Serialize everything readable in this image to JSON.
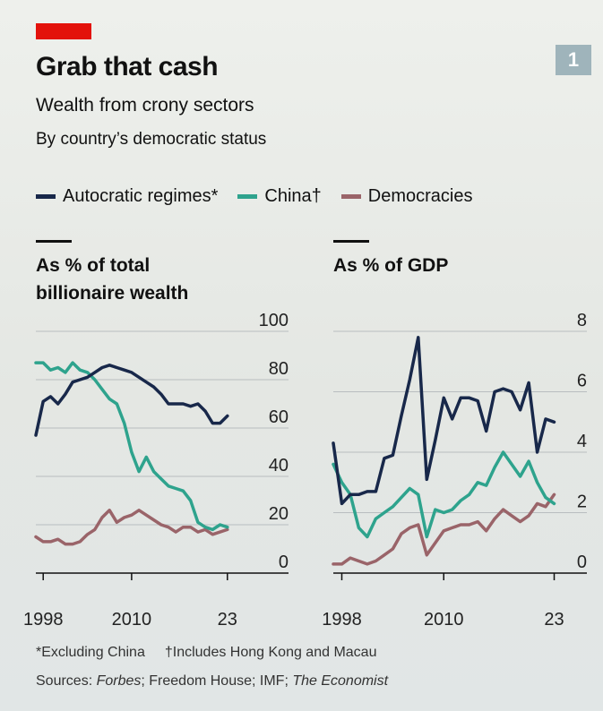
{
  "header": {
    "badge_number": "1",
    "title": "Grab that cash",
    "subtitle": "Wealth from crony sectors",
    "subtitle2": "By country’s democratic status"
  },
  "legend": [
    {
      "label": "Autocratic regimes*",
      "color": "#18284a"
    },
    {
      "label": "China†",
      "color": "#2ea38d"
    },
    {
      "label": "Democracies",
      "color": "#9a6469"
    }
  ],
  "colors": {
    "accent_red": "#e3120b",
    "autocratic": "#18284a",
    "china": "#2ea38d",
    "democracies": "#9a6469"
  },
  "chart_data": [
    {
      "type": "line",
      "title": "As % of total billionaire wealth",
      "x_ticks": [
        "1998",
        "2010",
        "23"
      ],
      "y_ticks": [
        "100",
        "80",
        "60",
        "40",
        "20",
        "0"
      ],
      "ylim": [
        0,
        100
      ],
      "xlim": [
        1997,
        2024
      ],
      "grid": true,
      "series": [
        {
          "name": "Autocratic regimes*",
          "x": [
            1997,
            1998,
            1999,
            2000,
            2001,
            2002,
            2003,
            2004,
            2005,
            2006,
            2007,
            2008,
            2009,
            2010,
            2011,
            2012,
            2013,
            2014,
            2015,
            2016,
            2017,
            2018,
            2019,
            2020,
            2021,
            2022,
            2023
          ],
          "values": [
            57,
            71,
            73,
            70,
            74,
            79,
            80,
            81,
            83,
            85,
            86,
            85,
            84,
            83,
            81,
            79,
            77,
            74,
            70,
            70,
            70,
            69,
            70,
            67,
            62,
            62,
            65
          ]
        },
        {
          "name": "China†",
          "x": [
            1997,
            1998,
            1999,
            2000,
            2001,
            2002,
            2003,
            2004,
            2005,
            2006,
            2007,
            2008,
            2009,
            2010,
            2011,
            2012,
            2013,
            2014,
            2015,
            2016,
            2017,
            2018,
            2019,
            2020,
            2021,
            2022,
            2023
          ],
          "values": [
            87,
            87,
            84,
            85,
            83,
            87,
            84,
            83,
            80,
            76,
            72,
            70,
            62,
            50,
            42,
            48,
            42,
            39,
            36,
            35,
            34,
            30,
            21,
            19,
            18,
            20,
            19
          ]
        },
        {
          "name": "Democracies",
          "x": [
            1997,
            1998,
            1999,
            2000,
            2001,
            2002,
            2003,
            2004,
            2005,
            2006,
            2007,
            2008,
            2009,
            2010,
            2011,
            2012,
            2013,
            2014,
            2015,
            2016,
            2017,
            2018,
            2019,
            2020,
            2021,
            2022,
            2023
          ],
          "values": [
            15,
            13,
            13,
            14,
            12,
            12,
            13,
            16,
            18,
            23,
            26,
            21,
            23,
            24,
            26,
            24,
            22,
            20,
            19,
            17,
            19,
            19,
            17,
            18,
            16,
            17,
            18
          ]
        }
      ]
    },
    {
      "type": "line",
      "title": "As % of GDP",
      "x_ticks": [
        "1998",
        "2010",
        "23"
      ],
      "y_ticks": [
        "8",
        "6",
        "4",
        "2",
        "0"
      ],
      "ylim": [
        0,
        8
      ],
      "xlim": [
        1997,
        2024
      ],
      "grid": true,
      "series": [
        {
          "name": "Autocratic regimes*",
          "x": [
            1997,
            1998,
            1999,
            2000,
            2001,
            2002,
            2003,
            2004,
            2005,
            2006,
            2007,
            2008,
            2009,
            2010,
            2011,
            2012,
            2013,
            2014,
            2015,
            2016,
            2017,
            2018,
            2019,
            2020,
            2021,
            2022,
            2023
          ],
          "values": [
            4.3,
            2.3,
            2.6,
            2.6,
            2.7,
            2.7,
            3.8,
            3.9,
            5.2,
            6.4,
            7.8,
            3.1,
            4.4,
            5.8,
            5.1,
            5.8,
            5.8,
            5.7,
            4.7,
            6.0,
            6.1,
            6.0,
            5.4,
            6.3,
            4.0,
            5.1,
            5.0
          ]
        },
        {
          "name": "China†",
          "x": [
            1997,
            1998,
            1999,
            2000,
            2001,
            2002,
            2003,
            2004,
            2005,
            2006,
            2007,
            2008,
            2009,
            2010,
            2011,
            2012,
            2013,
            2014,
            2015,
            2016,
            2017,
            2018,
            2019,
            2020,
            2021,
            2022,
            2023
          ],
          "values": [
            3.6,
            3.0,
            2.6,
            1.5,
            1.2,
            1.8,
            2.0,
            2.2,
            2.5,
            2.8,
            2.6,
            1.2,
            2.1,
            2.0,
            2.1,
            2.4,
            2.6,
            3.0,
            2.9,
            3.5,
            4.0,
            3.6,
            3.2,
            3.7,
            3.0,
            2.5,
            2.3
          ]
        },
        {
          "name": "Democracies",
          "x": [
            1997,
            1998,
            1999,
            2000,
            2001,
            2002,
            2003,
            2004,
            2005,
            2006,
            2007,
            2008,
            2009,
            2010,
            2011,
            2012,
            2013,
            2014,
            2015,
            2016,
            2017,
            2018,
            2019,
            2020,
            2021,
            2022,
            2023
          ],
          "values": [
            0.3,
            0.3,
            0.5,
            0.4,
            0.3,
            0.4,
            0.6,
            0.8,
            1.3,
            1.5,
            1.6,
            0.6,
            1.0,
            1.4,
            1.5,
            1.6,
            1.6,
            1.7,
            1.4,
            1.8,
            2.1,
            1.9,
            1.7,
            1.9,
            2.3,
            2.2,
            2.6
          ]
        }
      ]
    }
  ],
  "panels": {
    "left_title_line1": "As % of total",
    "left_title_line2": "billionaire wealth",
    "right_title": "As % of GDP"
  },
  "footer": {
    "footnote_1": "*Excluding China",
    "footnote_2": "†Includes Hong Kong and Macau",
    "sources_prefix": "Sources: ",
    "sources_forbes": "Forbes",
    "sources_middle": "; Freedom House; IMF; ",
    "sources_economist": "The Economist"
  }
}
